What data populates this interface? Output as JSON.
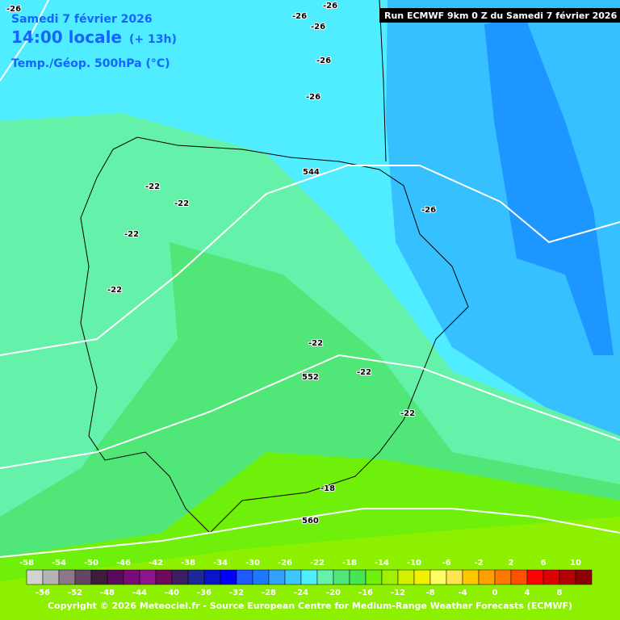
{
  "header": {
    "date": "Samedi 7 février 2026",
    "time": "14:00 locale",
    "offset": "(+ 13h)",
    "field": "Temp./Géop. 500hPa (°C)",
    "run": "Run ECMWF 9km 0 Z du Samedi 7 février 2026"
  },
  "map": {
    "labels": [
      -26,
      -26,
      -26,
      -26,
      -26,
      -26,
      544,
      -22,
      -22,
      -22,
      -22,
      -26,
      -22,
      -22,
      552,
      -22,
      -18,
      560
    ]
  },
  "colorbar": {
    "ticks_top": [
      -58,
      -54,
      -50,
      -46,
      -42,
      -38,
      -34,
      -30,
      -26,
      -22,
      -18,
      -14,
      -10,
      -6,
      -2,
      2,
      6,
      10
    ],
    "ticks_bottom": [
      -56,
      -52,
      -48,
      -44,
      -40,
      -36,
      -32,
      -28,
      -24,
      -20,
      -16,
      -12,
      -8,
      -4,
      0,
      4,
      8
    ],
    "colors": [
      "#d2d2d2",
      "#b4b4b4",
      "#8c788c",
      "#644664",
      "#3c1e3c",
      "#5a0a5a",
      "#7a0a7a",
      "#8c148c",
      "#6e0a5a",
      "#3c1e64",
      "#1e2896",
      "#0a14c8",
      "#0000ff",
      "#1e5aff",
      "#1e78ff",
      "#32a0ff",
      "#3cc8ff",
      "#50ecff",
      "#64f2aa",
      "#50e678",
      "#46e650",
      "#6ef00a",
      "#a0f000",
      "#d2f000",
      "#f0f000",
      "#ffff64",
      "#ffe650",
      "#ffc800",
      "#ffa000",
      "#ff7800",
      "#ff5000",
      "#ff0000",
      "#dc0000",
      "#b40000",
      "#8c0000"
    ]
  },
  "footer": {
    "copyright": "Copyright © 2026 Meteociel.fr - Source European Centre for Medium-Range Weather Forecasts (ECMWF)"
  }
}
